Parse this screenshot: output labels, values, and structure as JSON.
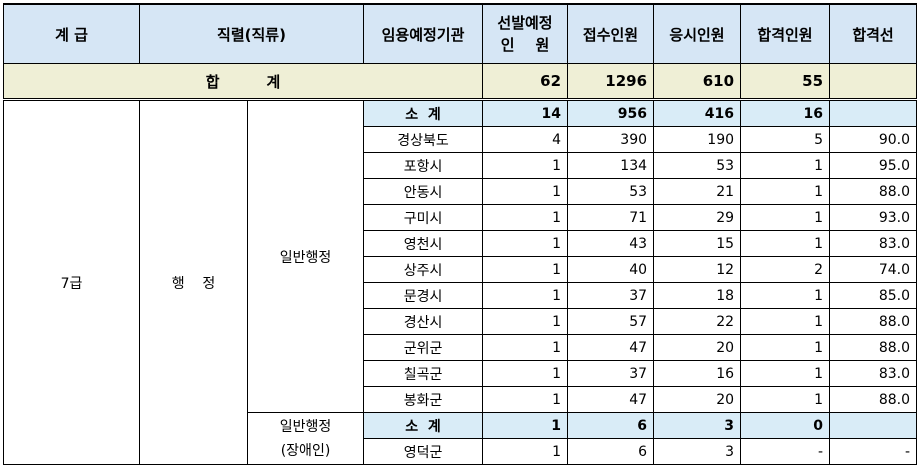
{
  "headers": [
    "계  급",
    "직렬(직류)",
    "임용예정기관",
    "선발예정",
    "인    원",
    "접수인원",
    "응시인원",
    "합격인원",
    "합격선"
  ],
  "total": {
    "label": "합         계",
    "selected": "62",
    "applied": "1296",
    "attended": "610",
    "passed": "55",
    "cutoff": ""
  },
  "grade": "7급",
  "series": "행    정",
  "group1": {
    "name": "일반행정",
    "subtotal": {
      "label": "소  계",
      "selected": "14",
      "applied": "956",
      "attended": "416",
      "passed": "16",
      "cutoff": ""
    },
    "rows": [
      {
        "org": "경상북도",
        "selected": "4",
        "applied": "390",
        "attended": "190",
        "passed": "5",
        "cutoff": "90.0"
      },
      {
        "org": "포항시",
        "selected": "1",
        "applied": "134",
        "attended": "53",
        "passed": "1",
        "cutoff": "95.0"
      },
      {
        "org": "안동시",
        "selected": "1",
        "applied": "53",
        "attended": "21",
        "passed": "1",
        "cutoff": "88.0"
      },
      {
        "org": "구미시",
        "selected": "1",
        "applied": "71",
        "attended": "29",
        "passed": "1",
        "cutoff": "93.0"
      },
      {
        "org": "영천시",
        "selected": "1",
        "applied": "43",
        "attended": "15",
        "passed": "1",
        "cutoff": "83.0"
      },
      {
        "org": "상주시",
        "selected": "1",
        "applied": "40",
        "attended": "12",
        "passed": "2",
        "cutoff": "74.0"
      },
      {
        "org": "문경시",
        "selected": "1",
        "applied": "37",
        "attended": "18",
        "passed": "1",
        "cutoff": "85.0"
      },
      {
        "org": "경산시",
        "selected": "1",
        "applied": "57",
        "attended": "22",
        "passed": "1",
        "cutoff": "88.0"
      },
      {
        "org": "군위군",
        "selected": "1",
        "applied": "47",
        "attended": "20",
        "passed": "1",
        "cutoff": "88.0"
      },
      {
        "org": "칠곡군",
        "selected": "1",
        "applied": "37",
        "attended": "16",
        "passed": "1",
        "cutoff": "83.0"
      },
      {
        "org": "봉화군",
        "selected": "1",
        "applied": "47",
        "attended": "20",
        "passed": "1",
        "cutoff": "88.0"
      }
    ]
  },
  "group2": {
    "name_line1": "일반행정",
    "name_line2": "(장애인)",
    "subtotal": {
      "label": "소  계",
      "selected": "1",
      "applied": "6",
      "attended": "3",
      "passed": "0",
      "cutoff": ""
    },
    "rows": [
      {
        "org": "영덕군",
        "selected": "1",
        "applied": "6",
        "attended": "3",
        "passed": "-",
        "cutoff": "-"
      }
    ]
  }
}
